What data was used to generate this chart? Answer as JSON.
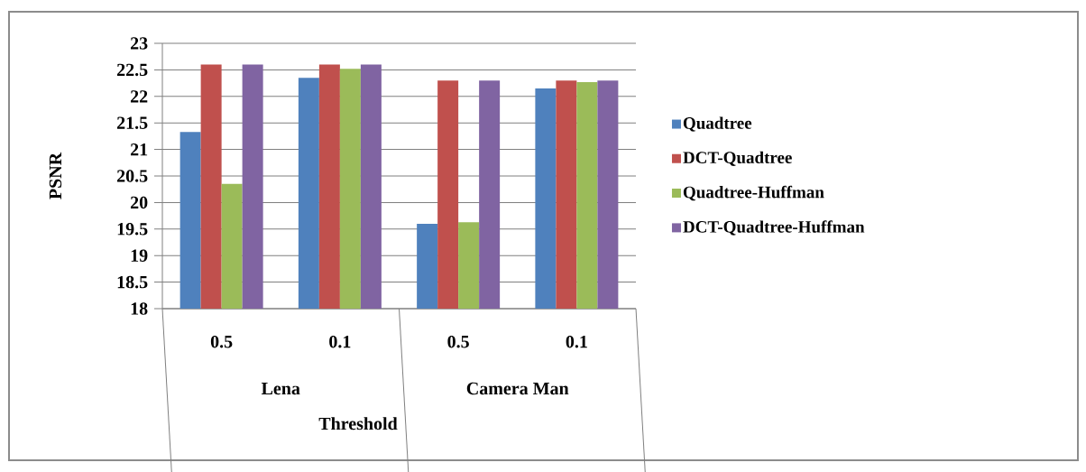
{
  "chart_data": {
    "type": "bar",
    "xlabel": "Threshold",
    "ylabel": "PSNR",
    "categories": [
      "0.5",
      "0.1",
      "0.5",
      "0.1"
    ],
    "series": [
      {
        "name": "Quadtree",
        "color": "#4f81bd",
        "values": [
          21.33,
          22.35,
          19.6,
          22.15
        ]
      },
      {
        "name": "DCT-Quadtree",
        "color": "#c0504d",
        "values": [
          22.6,
          22.6,
          22.3,
          22.3
        ]
      },
      {
        "name": "Quadtree-Huffman",
        "color": "#9bbb59",
        "values": [
          20.35,
          22.52,
          19.63,
          22.27
        ]
      },
      {
        "name": "DCT-Quadtree-Huffman",
        "color": "#8064a2",
        "values": [
          22.6,
          22.6,
          22.3,
          22.3
        ]
      }
    ],
    "annotations": [
      "Lena",
      "Camera Man"
    ],
    "ylim": [
      18,
      23
    ],
    "yticks": [
      18,
      18.5,
      19,
      19.5,
      20,
      20.5,
      21,
      21.5,
      22,
      22.5,
      23
    ],
    "grid": "y",
    "legend": "right"
  }
}
